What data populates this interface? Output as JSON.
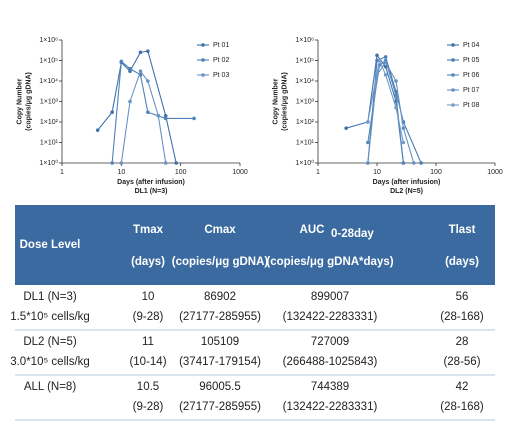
{
  "chart_data": [
    {
      "type": "line",
      "title": "DL1 (N=3)",
      "x_label": "Days (after infusion)",
      "y_label": [
        "Copy Number",
        "(copies/μg gDNA)"
      ],
      "xlog": true,
      "ylog": true,
      "xlim": [
        1,
        1000
      ],
      "xticks": [
        1,
        10,
        100,
        1000
      ],
      "ylim": [
        1,
        1000000
      ],
      "yticks": [
        {
          "value": 1,
          "label": "1×10⁰"
        },
        {
          "value": 10,
          "label": "1×10¹"
        },
        {
          "value": 100,
          "label": "1×10²"
        },
        {
          "value": 1000,
          "label": "1×10³"
        },
        {
          "value": 10000,
          "label": "1×10⁴"
        },
        {
          "value": 100000,
          "label": "1×10⁵"
        },
        {
          "value": 1000000,
          "label": "1×10⁶"
        }
      ],
      "legend": "top-right",
      "series": [
        {
          "name": "Pt 01",
          "color": "#3f73aa",
          "x": [
            4,
            7,
            10,
            14,
            21,
            28,
            56,
            84
          ],
          "values": [
            40,
            300,
            80000,
            30000,
            250000,
            286000,
            200,
            1
          ]
        },
        {
          "name": "Pt 02",
          "color": "#4f82b8",
          "x": [
            7,
            10,
            14,
            21,
            28,
            56,
            168
          ],
          "values": [
            1,
            90000,
            40000,
            20000,
            300,
            150,
            150
          ]
        },
        {
          "name": "Pt 03",
          "color": "#6893c4",
          "x": [
            10,
            14,
            21,
            28,
            42,
            56
          ],
          "values": [
            1,
            1000,
            30000,
            10000,
            200,
            1
          ]
        }
      ]
    },
    {
      "type": "line",
      "title": "DL2 (N=5)",
      "x_label": "Days (after infusion)",
      "y_label": [
        "Copy Number",
        "(copies/μg gDNA)"
      ],
      "xlog": true,
      "ylog": true,
      "xlim": [
        1,
        1000
      ],
      "xticks": [
        1,
        10,
        100,
        1000
      ],
      "ylim": [
        1,
        1000000
      ],
      "yticks": [
        {
          "value": 1,
          "label": "1×10⁰"
        },
        {
          "value": 10,
          "label": "1×10¹"
        },
        {
          "value": 100,
          "label": "1×10²"
        },
        {
          "value": 1000,
          "label": "1×10³"
        },
        {
          "value": 10000,
          "label": "1×10⁴"
        },
        {
          "value": 100000,
          "label": "1×10⁵"
        },
        {
          "value": 1000000,
          "label": "1×10⁶"
        }
      ],
      "legend": "top-right",
      "series": [
        {
          "name": "Pt 04",
          "color": "#3f73aa",
          "x": [
            3,
            7,
            10,
            14,
            21,
            28
          ],
          "values": [
            50,
            100,
            180000,
            50000,
            1000,
            1
          ]
        },
        {
          "name": "Pt 05",
          "color": "#4a7db5",
          "x": [
            7,
            10,
            14,
            21,
            28,
            56
          ],
          "values": [
            1,
            100000,
            150000,
            3000,
            100,
            1
          ]
        },
        {
          "name": "Pt 06",
          "color": "#5587bd",
          "x": [
            7,
            11,
            14,
            21,
            28
          ],
          "values": [
            10,
            60000,
            100000,
            2000,
            1
          ]
        },
        {
          "name": "Pt 07",
          "color": "#6391c3",
          "x": [
            7,
            10,
            14,
            21,
            28,
            42
          ],
          "values": [
            1,
            20000,
            80000,
            10000,
            50,
            1
          ]
        },
        {
          "name": "Pt 08",
          "color": "#739cc9",
          "x": [
            7,
            11,
            14,
            21,
            28
          ],
          "values": [
            100,
            105000,
            20000,
            500,
            10
          ]
        }
      ]
    }
  ],
  "table": {
    "header": [
      [
        "Dose Level"
      ],
      [
        "Tmax",
        "(days)"
      ],
      [
        "Cmax",
        "(copies/μg gDNA)"
      ],
      [
        "AUC",
        "(copies/μg gDNA*days)"
      ],
      [
        "Tlast",
        "(days)"
      ]
    ],
    "header_sub": "0-28day",
    "rows": [
      [
        "DL1 (N=3)",
        "10",
        "86902",
        "899007",
        "56"
      ],
      [
        "1.5*10⁵ cells/kg",
        "(9-28)",
        "(27177-285955)",
        "(132422-2283331)",
        "(28-168)"
      ],
      [
        "DL2 (N=5)",
        "11",
        "105109",
        "727009",
        "28"
      ],
      [
        "3.0*10⁵ cells/kg",
        "(10-14)",
        "(37417-179154)",
        "(266488-1025843)",
        "(28-56)"
      ],
      [
        "ALL (N=8)",
        "10.5",
        "96005.5",
        "744389",
        "42"
      ],
      [
        "",
        "(9-28)",
        "(27177-285955)",
        "(132422-2283331)",
        "(28-168)"
      ]
    ]
  }
}
